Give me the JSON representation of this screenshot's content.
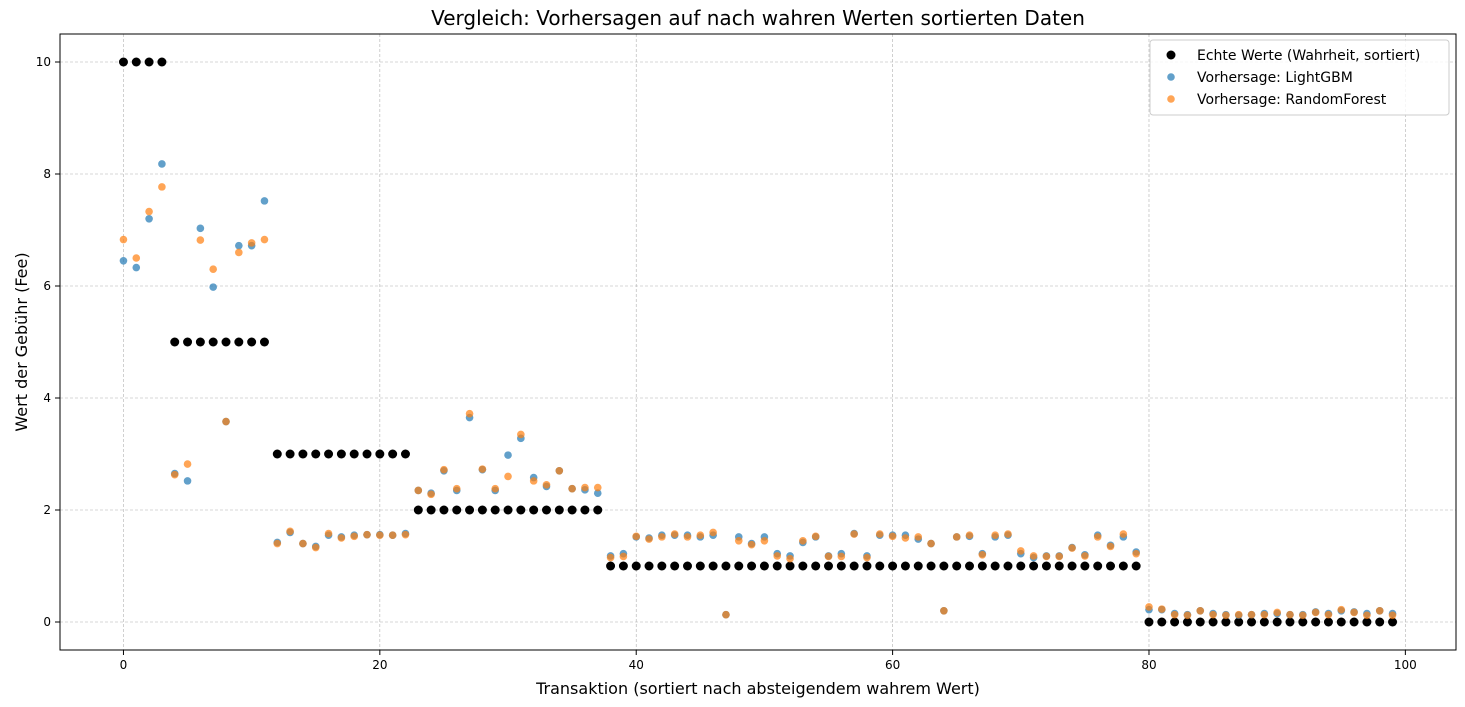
{
  "chart_data": {
    "type": "scatter",
    "title": "Vergleich: Vorhersagen auf nach wahren Werten sortierten Daten",
    "xlabel": "Transaktion (sortiert nach absteigendem wahrem Wert)",
    "ylabel": "Wert der Gebühr (Fee)",
    "xlim": [
      -4.95,
      103.95
    ],
    "ylim": [
      -0.5,
      10.5
    ],
    "xticks": [
      0,
      20,
      40,
      60,
      80,
      100
    ],
    "yticks": [
      0,
      2,
      4,
      6,
      8,
      10
    ],
    "grid": true,
    "legend_position": "top-right",
    "x": [
      0,
      1,
      2,
      3,
      4,
      5,
      6,
      7,
      8,
      9,
      10,
      11,
      12,
      13,
      14,
      15,
      16,
      17,
      18,
      19,
      20,
      21,
      22,
      23,
      24,
      25,
      26,
      27,
      28,
      29,
      30,
      31,
      32,
      33,
      34,
      35,
      36,
      37,
      38,
      39,
      40,
      41,
      42,
      43,
      44,
      45,
      46,
      47,
      48,
      49,
      50,
      51,
      52,
      53,
      54,
      55,
      56,
      57,
      58,
      59,
      60,
      61,
      62,
      63,
      64,
      65,
      66,
      67,
      68,
      69,
      70,
      71,
      72,
      73,
      74,
      75,
      76,
      77,
      78,
      79,
      80,
      81,
      82,
      83,
      84,
      85,
      86,
      87,
      88,
      89,
      90,
      91,
      92,
      93,
      94,
      95,
      96,
      97,
      98,
      99
    ],
    "series": [
      {
        "name": "Echte Werte (Wahrheit, sortiert)",
        "color": "#000000",
        "marker_size": 4.5,
        "opacity": 1,
        "values": [
          10,
          10,
          10,
          10,
          5,
          5,
          5,
          5,
          5,
          5,
          5,
          5,
          3,
          3,
          3,
          3,
          3,
          3,
          3,
          3,
          3,
          3,
          3,
          2,
          2,
          2,
          2,
          2,
          2,
          2,
          2,
          2,
          2,
          2,
          2,
          2,
          2,
          2,
          1,
          1,
          1,
          1,
          1,
          1,
          1,
          1,
          1,
          1,
          1,
          1,
          1,
          1,
          1,
          1,
          1,
          1,
          1,
          1,
          1,
          1,
          1,
          1,
          1,
          1,
          1,
          1,
          1,
          1,
          1,
          1,
          1,
          1,
          1,
          1,
          1,
          1,
          1,
          1,
          1,
          1,
          0,
          0,
          0,
          0,
          0,
          0,
          0,
          0,
          0,
          0,
          0,
          0,
          0,
          0,
          0,
          0,
          0,
          0,
          0,
          0
        ]
      },
      {
        "name": "Vorhersage: LightGBM",
        "color": "#1f77b4",
        "marker_size": 3.8,
        "opacity": 0.7,
        "values": [
          6.45,
          6.33,
          7.2,
          8.18,
          2.65,
          2.52,
          7.03,
          5.98,
          3.58,
          6.72,
          6.72,
          7.52,
          1.42,
          1.6,
          1.4,
          1.35,
          1.55,
          1.52,
          1.55,
          1.56,
          1.56,
          1.55,
          1.58,
          2.35,
          2.3,
          2.7,
          2.35,
          3.65,
          2.72,
          2.35,
          2.98,
          3.28,
          2.58,
          2.42,
          2.7,
          2.38,
          2.36,
          2.3,
          1.18,
          1.22,
          1.52,
          1.5,
          1.55,
          1.55,
          1.55,
          1.52,
          1.55,
          0.13,
          1.52,
          1.4,
          1.52,
          1.22,
          1.18,
          1.42,
          1.52,
          1.18,
          1.22,
          1.58,
          1.18,
          1.55,
          1.55,
          1.55,
          1.48,
          1.4,
          0.2,
          1.52,
          1.53,
          1.22,
          1.52,
          1.55,
          1.22,
          1.15,
          1.18,
          1.18,
          1.33,
          1.2,
          1.55,
          1.37,
          1.52,
          1.25,
          0.22,
          0.22,
          0.15,
          0.13,
          0.2,
          0.15,
          0.13,
          0.12,
          0.13,
          0.15,
          0.15,
          0.13,
          0.13,
          0.18,
          0.15,
          0.2,
          0.18,
          0.15,
          0.2,
          0.15
        ]
      },
      {
        "name": "Vorhersage: RandomForest",
        "color": "#ff7f0e",
        "marker_size": 3.8,
        "opacity": 0.7,
        "values": [
          6.83,
          6.5,
          7.33,
          7.77,
          2.63,
          2.82,
          6.82,
          6.3,
          3.58,
          6.6,
          6.77,
          6.83,
          1.4,
          1.62,
          1.4,
          1.33,
          1.58,
          1.5,
          1.53,
          1.56,
          1.55,
          1.55,
          1.56,
          2.35,
          2.28,
          2.72,
          2.38,
          3.72,
          2.73,
          2.38,
          2.6,
          3.35,
          2.52,
          2.45,
          2.7,
          2.38,
          2.4,
          2.4,
          1.15,
          1.17,
          1.53,
          1.48,
          1.52,
          1.57,
          1.52,
          1.55,
          1.6,
          0.13,
          1.45,
          1.38,
          1.45,
          1.18,
          1.13,
          1.45,
          1.53,
          1.17,
          1.17,
          1.57,
          1.15,
          1.57,
          1.53,
          1.5,
          1.52,
          1.4,
          0.2,
          1.52,
          1.55,
          1.2,
          1.55,
          1.57,
          1.27,
          1.18,
          1.17,
          1.17,
          1.32,
          1.18,
          1.52,
          1.35,
          1.57,
          1.22,
          0.27,
          0.23,
          0.13,
          0.12,
          0.2,
          0.13,
          0.12,
          0.13,
          0.13,
          0.13,
          0.17,
          0.13,
          0.12,
          0.17,
          0.13,
          0.22,
          0.17,
          0.12,
          0.2,
          0.12
        ]
      }
    ]
  }
}
